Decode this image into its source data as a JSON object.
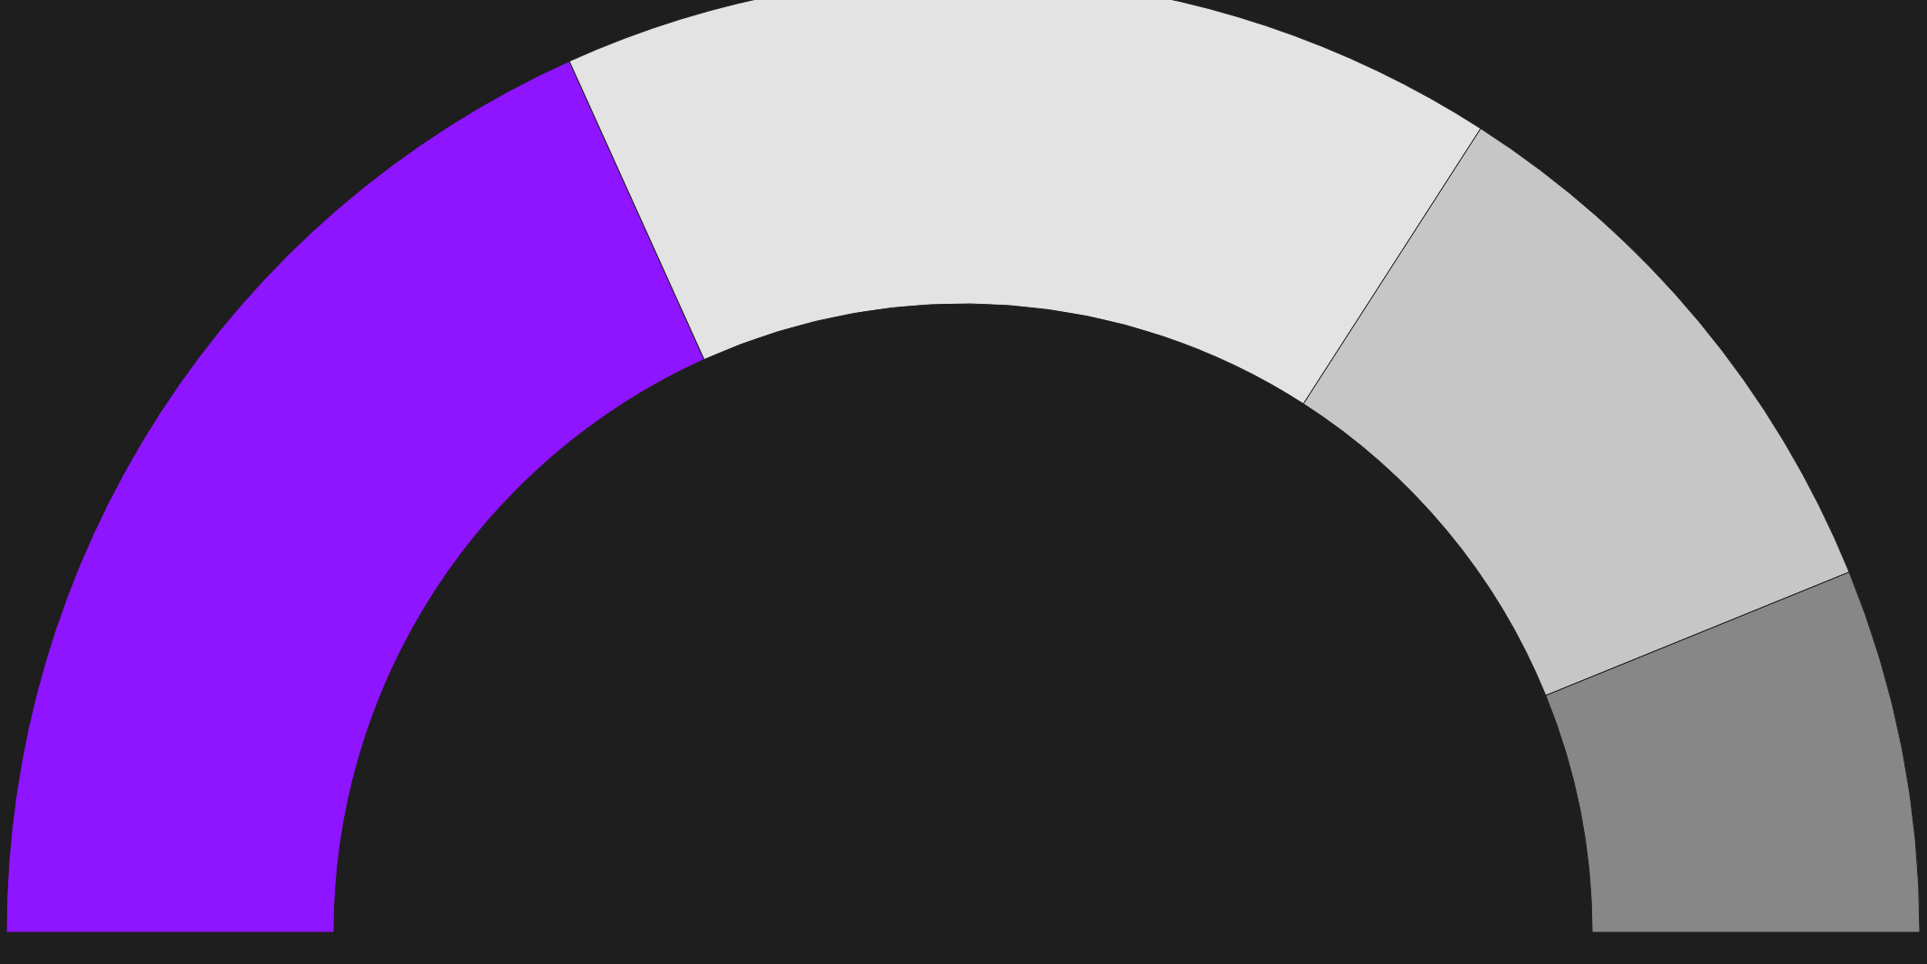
{
  "chart_data": {
    "type": "donut",
    "categories": [
      null,
      null,
      null,
      null
    ],
    "values": [
      36.5,
      31.7,
      19.5,
      12.3
    ],
    "colors": [
      "#8f14ff",
      "#e3e3e3",
      "#c6c6c6",
      "#878787"
    ]
  }
}
